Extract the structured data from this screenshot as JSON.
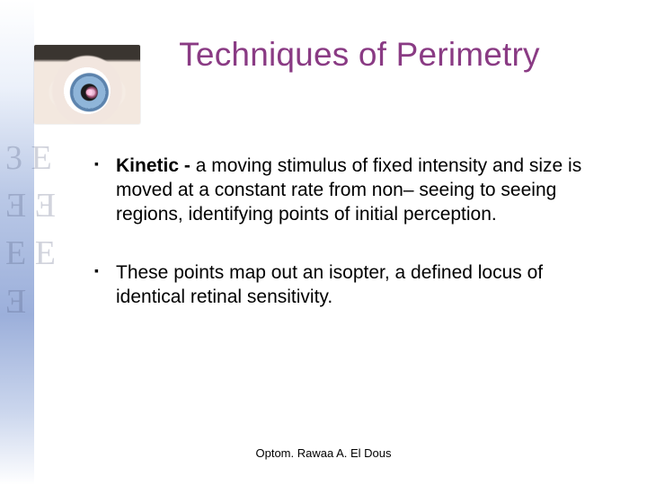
{
  "title": {
    "text": "Techniques of Perimetry",
    "color": "#8a3b84"
  },
  "bullets": [
    {
      "bold_prefix": "Kinetic - ",
      "rest": "a moving stimulus of fixed intensity and size is moved at a constant rate from non– seeing to seeing regions, identifying points of initial perception."
    },
    {
      "bold_prefix": "",
      "rest": "These points map out an isopter, a defined locus of identical retinal sensitivity."
    }
  ],
  "footer": "Optom. Rawaa A. El Dous",
  "decor": {
    "eye_chart_glyphs": "3\nE Ǝ\nƎ E\nE Ǝ"
  },
  "colors": {
    "title": "#8a3b84",
    "body_text": "#000000",
    "background": "#ffffff"
  }
}
